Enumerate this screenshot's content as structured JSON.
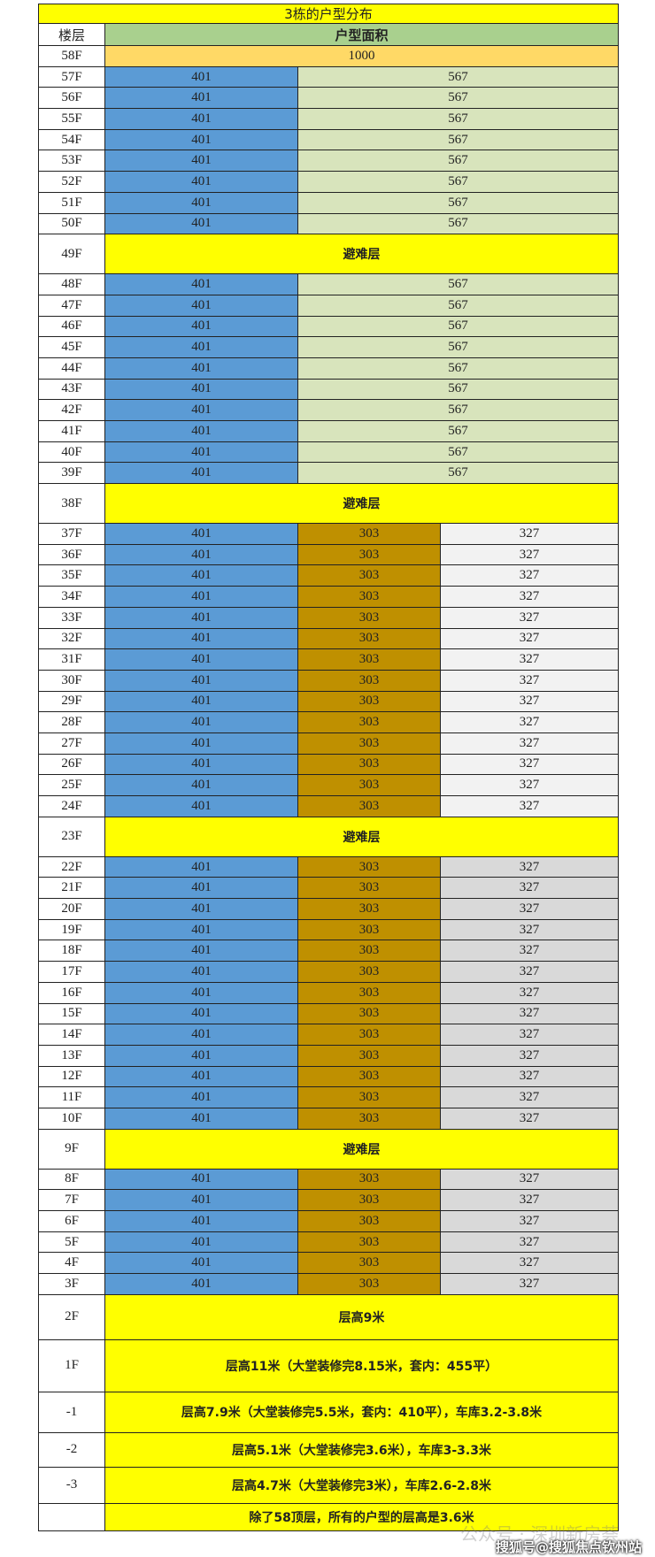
{
  "title": "3栋的户型分布",
  "header": {
    "floor": "楼层",
    "area": "户型面积"
  },
  "colors": {
    "title": "#ffff00",
    "header": "#a9d08e",
    "top": "#ffd966",
    "blue": "#5b9bd5",
    "green": "#d8e4bc",
    "gold": "#bf9000",
    "white": "#f2f2f2",
    "gray": "#d9d9d9",
    "note": "#ffff00"
  },
  "groups": [
    {
      "floors": [
        "58F"
      ],
      "units": [
        {
          "v": "1000",
          "c": "top",
          "span": 3
        }
      ]
    },
    {
      "floors": [
        "57F",
        "56F",
        "55F",
        "54F",
        "53F",
        "52F",
        "51F",
        "50F"
      ],
      "units": [
        {
          "v": "401",
          "c": "blue"
        },
        {
          "v": "567",
          "c": "green",
          "span": 2
        }
      ]
    },
    {
      "floors": [
        "49F"
      ],
      "note": "避难层",
      "refuge": true
    },
    {
      "floors": [
        "48F",
        "47F",
        "46F",
        "45F",
        "44F",
        "43F",
        "42F",
        "41F",
        "40F",
        "39F"
      ],
      "units": [
        {
          "v": "401",
          "c": "blue"
        },
        {
          "v": "567",
          "c": "green",
          "span": 2
        }
      ]
    },
    {
      "floors": [
        "38F"
      ],
      "note": "避难层",
      "refuge": true
    },
    {
      "floors": [
        "37F",
        "36F",
        "35F",
        "34F",
        "33F",
        "32F",
        "31F",
        "30F",
        "29F",
        "28F",
        "27F",
        "26F",
        "25F",
        "24F"
      ],
      "units": [
        {
          "v": "401",
          "c": "blue"
        },
        {
          "v": "303",
          "c": "gold"
        },
        {
          "v": "327",
          "c": "white"
        }
      ]
    },
    {
      "floors": [
        "23F"
      ],
      "note": "避难层",
      "refuge": true
    },
    {
      "floors": [
        "22F",
        "21F",
        "20F",
        "19F",
        "18F",
        "17F",
        "16F",
        "15F",
        "14F",
        "13F",
        "12F",
        "11F",
        "10F"
      ],
      "units": [
        {
          "v": "401",
          "c": "blue"
        },
        {
          "v": "303",
          "c": "gold"
        },
        {
          "v": "327",
          "c": "gray"
        }
      ]
    },
    {
      "floors": [
        "9F"
      ],
      "note": "避难层",
      "refuge": true
    },
    {
      "floors": [
        "8F",
        "7F",
        "6F",
        "5F",
        "4F",
        "3F"
      ],
      "units": [
        {
          "v": "401",
          "c": "blue"
        },
        {
          "v": "303",
          "c": "gold"
        },
        {
          "v": "327",
          "c": "gray"
        }
      ]
    },
    {
      "floors": [
        "2F"
      ],
      "note": "层高9米",
      "h": 50
    },
    {
      "floors": [
        "1F"
      ],
      "note": "层高11米（大堂装修完8.15米，套内：455平）",
      "h": 58
    },
    {
      "floors": [
        "-1"
      ],
      "note": "层高7.9米（大堂装修完5.5米，套内：410平），车库3.2-3.8米",
      "h": 45
    },
    {
      "floors": [
        "-2"
      ],
      "note": "层高5.1米（大堂装修完3.6米），车库3-3.3米",
      "h": 38
    },
    {
      "floors": [
        "-3"
      ],
      "note": "层高4.7米（大堂装修完3米），车库2.6-2.8米",
      "h": 40
    },
    {
      "floors": [
        ""
      ],
      "note": "除了58顶层，所有的户型的层高是3.6米",
      "h": 30
    }
  ],
  "watermarks": {
    "wechat": "公众号 · 深圳新房荟",
    "sohu": "搜狐号@搜狐焦点钦州站"
  }
}
